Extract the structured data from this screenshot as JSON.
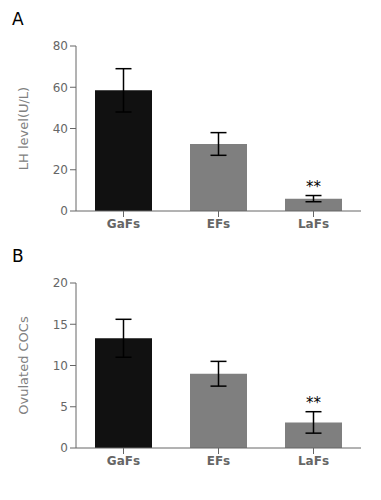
{
  "chart_data": [
    {
      "type": "bar",
      "title": "A",
      "categories": [
        "GaFs",
        "EFs",
        "LaFs"
      ],
      "values": [
        58.5,
        32.5,
        6.0
      ],
      "errors": [
        10.5,
        5.5,
        1.5
      ],
      "colors": [
        "#111111",
        "#7f7f7f",
        "#7f7f7f"
      ],
      "ylabel": "LH level(U/L)",
      "ylim": [
        0,
        80
      ],
      "yticks": [
        0,
        20,
        40,
        60,
        80
      ],
      "grid": false,
      "annotations": [
        {
          "text": "**",
          "category": "LaFs"
        }
      ]
    },
    {
      "type": "bar",
      "title": "B",
      "categories": [
        "GaFs",
        "EFs",
        "LaFs"
      ],
      "values": [
        13.3,
        9.0,
        3.1
      ],
      "errors": [
        2.3,
        1.5,
        1.3
      ],
      "colors": [
        "#111111",
        "#7f7f7f",
        "#7f7f7f"
      ],
      "ylabel": "Ovulated COCs",
      "ylim": [
        0,
        20
      ],
      "yticks": [
        0,
        5,
        10,
        15,
        20
      ],
      "grid": false,
      "annotations": [
        {
          "text": "**",
          "category": "LaFs"
        }
      ]
    }
  ]
}
